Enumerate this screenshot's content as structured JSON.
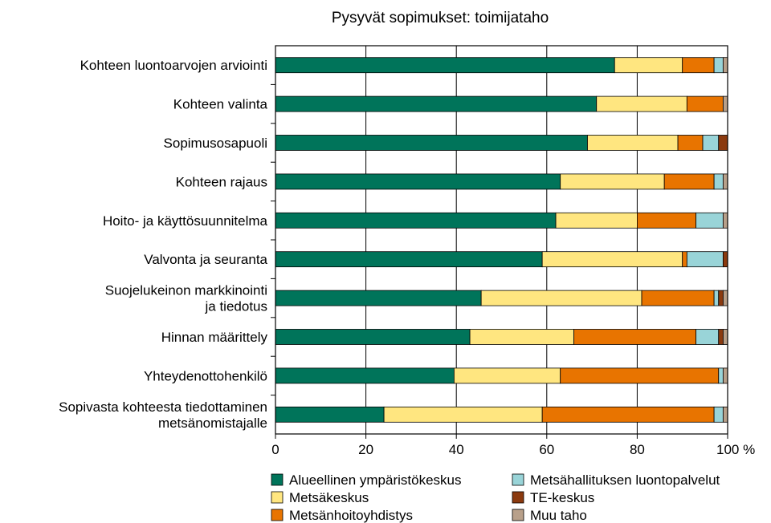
{
  "chart_data": {
    "type": "stacked_bar_horizontal",
    "title": "Pysyvät sopimukset: toimijataho",
    "categories": [
      "Kohteen luontoarvojen arviointi",
      "Kohteen valinta",
      "Sopimusosapuoli",
      "Kohteen rajaus",
      "Hoito- ja käyttösuunnitelma",
      "Valvonta ja seuranta",
      "Suojelukeinon markkinointi\nja tiedotus",
      "Hinnan määrittely",
      "Yhteydenottohenkilö",
      "Sopivasta kohteesta tiedottaminen\nmetsänomistajalle"
    ],
    "series": [
      {
        "name": "Alueellinen ympäristökeskus",
        "color": "#00745a",
        "values": [
          75,
          71,
          69,
          63,
          62,
          59,
          45.5,
          43,
          39.5,
          24
        ]
      },
      {
        "name": "Metsäkeskus",
        "color": "#ffe680",
        "values": [
          15,
          20,
          20,
          23,
          18,
          31,
          35.5,
          23,
          23.5,
          35
        ]
      },
      {
        "name": "Metsänhoitoyhdistys",
        "color": "#e87400",
        "values": [
          7,
          8,
          5.5,
          11,
          13,
          1,
          16,
          27,
          35,
          38
        ]
      },
      {
        "name": "Metsähallituksen luontopalvelut",
        "color": "#99d4d8",
        "values": [
          2,
          0,
          3.5,
          2,
          6,
          8,
          1,
          5,
          1,
          2
        ]
      },
      {
        "name": "TE-keskus",
        "color": "#8b3a0f",
        "values": [
          0,
          0,
          2,
          0,
          0,
          1,
          1,
          1,
          0,
          0
        ]
      },
      {
        "name": "Muu taho",
        "color": "#b8a08a",
        "values": [
          1,
          1,
          0,
          1,
          1,
          0,
          1,
          1,
          1,
          1
        ]
      }
    ],
    "xlim": [
      0,
      100
    ],
    "xticks": [
      0,
      20,
      40,
      60,
      80,
      {
        "value": 100,
        "label": "100 %"
      }
    ],
    "grid": true
  }
}
